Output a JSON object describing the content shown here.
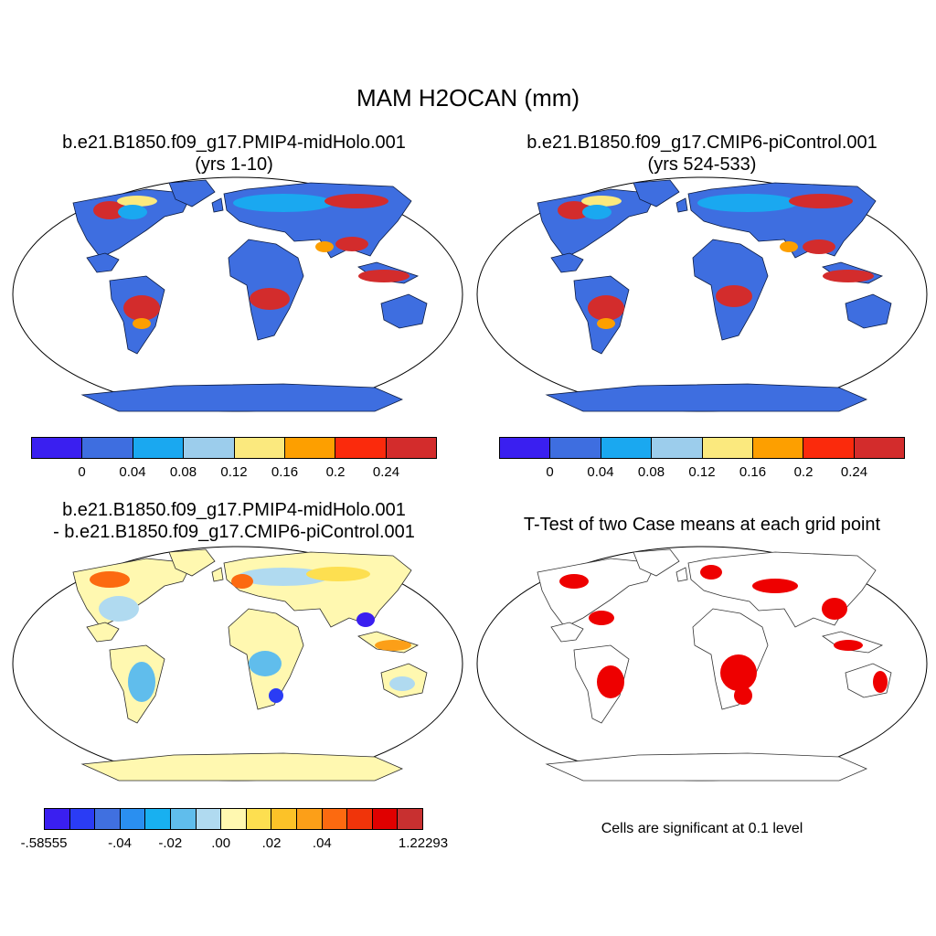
{
  "title": "MAM H2OCAN (mm)",
  "panels": [
    {
      "title_line1": "b.e21.B1850.f09_g17.PMIP4-midHolo.001",
      "title_line2": "(yrs 1-10)"
    },
    {
      "title_line1": "b.e21.B1850.f09_g17.CMIP6-piControl.001",
      "title_line2": "(yrs 524-533)"
    },
    {
      "title_line1": "b.e21.B1850.f09_g17.PMIP4-midHolo.001",
      "title_line2": "- b.e21.B1850.f09_g17.CMIP6-piControl.001"
    },
    {
      "title_line1": "T-Test of two Case means at each grid point",
      "title_line2": ""
    }
  ],
  "colorbar_abs": {
    "colors": [
      "#3a1ff0",
      "#3e6ee0",
      "#1aa8f0",
      "#9ccdec",
      "#fbe97e",
      "#fd9f00",
      "#fb2a0c",
      "#d32c2c"
    ],
    "labels": [
      "0",
      "0.04",
      "0.08",
      "0.12",
      "0.16",
      "0.2",
      "0.24"
    ]
  },
  "colorbar_diff": {
    "colors": [
      "#3a1ff0",
      "#2a3cf5",
      "#4070e0",
      "#2a8ff0",
      "#18b0f0",
      "#60bdec",
      "#b0daf0",
      "#fff8b0",
      "#fddf50",
      "#fcc228",
      "#fc9f18",
      "#fc6a10",
      "#f0340a",
      "#e00000",
      "#c83030"
    ],
    "labels": [
      "-.58555",
      "-.04",
      "-.02",
      ".00",
      ".02",
      ".04",
      "1.22293"
    ]
  },
  "note": "Cells are significant at 0.1 level"
}
